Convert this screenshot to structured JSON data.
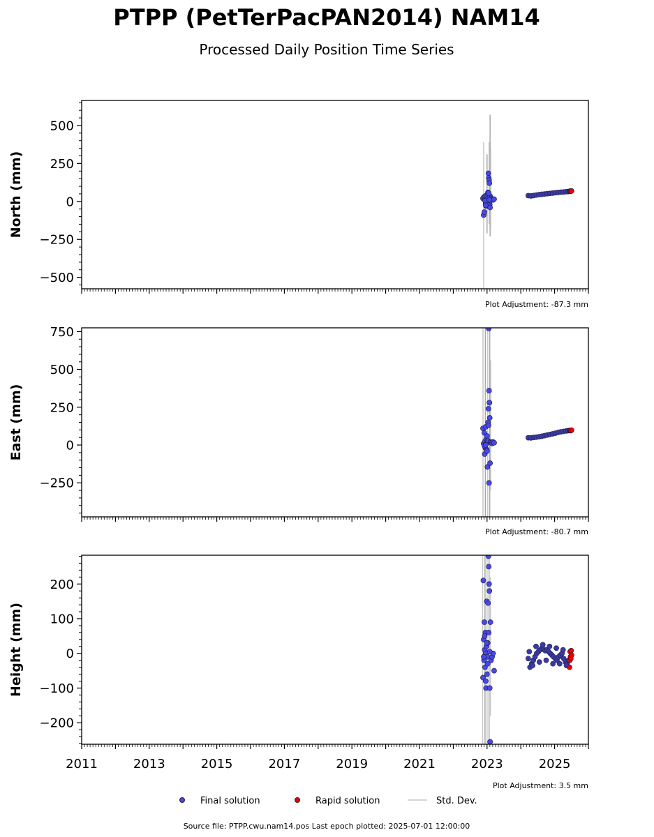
{
  "title": "PTPP (PetTerPacPAN2014) NAM14",
  "subtitle": "Processed Daily Position Time Series",
  "footer": "Source file: PTPP.cwu.nam14.pos  Last epoch plotted: 2025-07-01 12:00:00",
  "legend": {
    "final_label": "Final solution",
    "rapid_label": "Rapid solution",
    "std_label": "Std. Dev.",
    "placement": "bottom-center"
  },
  "colors": {
    "final": "#4848e8",
    "rapid": "#ee0000",
    "stddev": "#c8c8c8",
    "dark_cluster": "#22225a"
  },
  "chart_data": [
    {
      "type": "scatter",
      "ylabel": "North (mm)",
      "adjustment_text": "Plot Adjustment: -87.3 mm",
      "xlim": [
        2011.0,
        2026.0
      ],
      "ylim": [
        -575,
        665
      ],
      "yticks": [
        -500,
        -250,
        0,
        250,
        500
      ],
      "ytick_labels": [
        "−500",
        "−250",
        "0",
        "250",
        "500"
      ],
      "xtick_labels": [
        "",
        "",
        "",
        "",
        "",
        "",
        "",
        ""
      ],
      "series": [
        {
          "name": "Final solution",
          "x": [
            2022.88,
            2022.9,
            2022.91,
            2022.92,
            2022.93,
            2022.94,
            2022.95,
            2022.96,
            2022.97,
            2022.98,
            2022.99,
            2023.0,
            2023.01,
            2023.02,
            2023.03,
            2023.04,
            2023.05,
            2023.06,
            2023.07,
            2023.08,
            2023.09,
            2023.1,
            2023.12,
            2023.15,
            2023.18,
            2023.21,
            2022.94,
            2022.96,
            2023.05,
            2023.07,
            2023.09
          ],
          "y": [
            20,
            -90,
            30,
            -70,
            10,
            35,
            0,
            -10,
            -30,
            25,
            40,
            -5,
            15,
            50,
            60,
            185,
            155,
            140,
            120,
            -20,
            35,
            5,
            20,
            15,
            10,
            15,
            5,
            -25,
            55,
            10,
            -40
          ]
        },
        {
          "name": "Final solution",
          "x": [
            2024.22,
            2024.3,
            2024.38,
            2024.46,
            2024.54,
            2024.62,
            2024.7,
            2024.78,
            2024.86,
            2024.94,
            2025.02,
            2025.1,
            2025.18,
            2025.26,
            2025.34,
            2025.4
          ],
          "y": [
            38,
            36,
            39,
            42,
            45,
            47,
            49,
            51,
            53,
            55,
            57,
            59,
            61,
            62,
            64,
            65
          ]
        },
        {
          "name": "Rapid solution",
          "x": [
            2025.44,
            2025.46,
            2025.48,
            2025.5
          ],
          "y": [
            66,
            68,
            67,
            69
          ]
        }
      ],
      "stddev_segments": [
        {
          "x": 2022.9,
          "low": -575,
          "high": 390
        },
        {
          "x": 2023.0,
          "low": -210,
          "high": 310
        },
        {
          "x": 2023.06,
          "low": -150,
          "high": 390
        },
        {
          "x": 2023.09,
          "low": -230,
          "high": 570
        },
        {
          "x": 2023.11,
          "low": -180,
          "high": 350
        }
      ]
    },
    {
      "type": "scatter",
      "ylabel": "East (mm)",
      "adjustment_text": "Plot Adjustment: -80.7 mm",
      "xlim": [
        2011.0,
        2026.0
      ],
      "ylim": [
        -475,
        775
      ],
      "yticks": [
        -250,
        0,
        250,
        500,
        750
      ],
      "ytick_labels": [
        "−250",
        "0",
        "250",
        "500",
        "750"
      ],
      "xtick_labels": [
        "",
        "",
        "",
        "",
        "",
        "",
        "",
        ""
      ],
      "series": [
        {
          "name": "Final solution",
          "x": [
            2022.88,
            2022.9,
            2022.92,
            2022.93,
            2022.94,
            2022.95,
            2022.96,
            2022.97,
            2022.98,
            2022.99,
            2023.0,
            2023.01,
            2023.02,
            2023.03,
            2023.04,
            2023.05,
            2023.06,
            2023.07,
            2023.08,
            2023.09,
            2023.1,
            2023.12,
            2023.15,
            2023.18,
            2023.21,
            2022.92,
            2022.96,
            2023.0,
            2023.04,
            2023.06
          ],
          "y": [
            110,
            10,
            80,
            -60,
            25,
            -20,
            120,
            5,
            40,
            -30,
            60,
            -145,
            30,
            150,
            240,
            770,
            360,
            280,
            180,
            -120,
            20,
            15,
            10,
            20,
            15,
            -5,
            0,
            -40,
            130,
            -250
          ],
          "note": ""
        },
        {
          "name": "Final solution",
          "x": [
            2024.22,
            2024.3,
            2024.38,
            2024.46,
            2024.54,
            2024.62,
            2024.7,
            2024.78,
            2024.86,
            2024.94,
            2025.02,
            2025.1,
            2025.18,
            2025.26,
            2025.34,
            2025.4
          ],
          "y": [
            48,
            47,
            50,
            52,
            55,
            58,
            62,
            66,
            70,
            74,
            78,
            83,
            87,
            90,
            93,
            95
          ]
        },
        {
          "name": "Rapid solution",
          "x": [
            2025.44,
            2025.46,
            2025.48,
            2025.5
          ],
          "y": [
            96,
            97,
            95,
            98
          ]
        }
      ],
      "stddev_segments": [
        {
          "x": 2022.88,
          "low": -475,
          "high": 775
        },
        {
          "x": 2022.95,
          "low": -475,
          "high": 775
        },
        {
          "x": 2023.02,
          "low": -475,
          "high": 775
        },
        {
          "x": 2023.08,
          "low": -475,
          "high": 775
        },
        {
          "x": 2023.11,
          "low": -300,
          "high": 560
        }
      ]
    },
    {
      "type": "scatter",
      "ylabel": "Height (mm)",
      "adjustment_text": "Plot Adjustment: 3.5 mm",
      "xlim": [
        2011.0,
        2026.0
      ],
      "ylim": [
        -262,
        283
      ],
      "yticks": [
        -200,
        -100,
        0,
        100,
        200
      ],
      "ytick_labels": [
        "−200",
        "−100",
        "0",
        "100",
        "200"
      ],
      "xtick_labels": [
        "2011",
        "2013",
        "2015",
        "2017",
        "2019",
        "2021",
        "2023",
        "2025"
      ],
      "series": [
        {
          "name": "Final solution",
          "x": [
            2022.88,
            2022.89,
            2022.9,
            2022.91,
            2022.92,
            2022.93,
            2022.94,
            2022.95,
            2022.96,
            2022.97,
            2022.98,
            2022.99,
            2023.0,
            2023.01,
            2023.02,
            2023.03,
            2023.04,
            2023.05,
            2023.06,
            2023.07,
            2023.08,
            2023.09,
            2023.1,
            2023.12,
            2023.15,
            2023.18,
            2023.21,
            2022.9,
            2022.93,
            2022.96,
            2022.99,
            2023.02,
            2023.05,
            2023.08
          ],
          "y": [
            -70,
            210,
            40,
            -20,
            90,
            10,
            -40,
            60,
            0,
            -100,
            20,
            150,
            -60,
            -10,
            30,
            145,
            280,
            250,
            200,
            180,
            -100,
            -255,
            90,
            -20,
            -10,
            0,
            -50,
            -10,
            50,
            -80,
            30,
            -30,
            60,
            5
          ]
        },
        {
          "name": "Final solution",
          "x": [
            2024.22,
            2024.27,
            2024.32,
            2024.37,
            2024.42,
            2024.47,
            2024.52,
            2024.57,
            2024.62,
            2024.67,
            2024.72,
            2024.77,
            2024.82,
            2024.87,
            2024.92,
            2024.97,
            2025.02,
            2025.07,
            2025.12,
            2025.17,
            2025.22,
            2025.27,
            2025.32,
            2025.37,
            2025.42,
            2024.25,
            2024.35,
            2024.45,
            2024.55,
            2024.65,
            2024.75,
            2024.85,
            2024.95,
            2025.05,
            2025.15,
            2025.25,
            2025.35
          ],
          "y": [
            -15,
            -40,
            -30,
            -20,
            -10,
            0,
            5,
            10,
            15,
            12,
            8,
            10,
            5,
            0,
            -5,
            -10,
            -15,
            -20,
            -10,
            -5,
            0,
            -15,
            -25,
            -30,
            -20,
            5,
            -35,
            20,
            -25,
            25,
            -20,
            20,
            -30,
            15,
            -30,
            10,
            -35
          ]
        },
        {
          "name": "Rapid solution",
          "x": [
            2025.44,
            2025.45,
            2025.46,
            2025.47,
            2025.48,
            2025.49,
            2025.5
          ],
          "y": [
            -40,
            -20,
            5,
            -10,
            -15,
            8,
            -5
          ]
        }
      ],
      "stddev_segments": [
        {
          "x": 2022.87,
          "low": -262,
          "high": 283
        },
        {
          "x": 2022.94,
          "low": -262,
          "high": 283
        },
        {
          "x": 2023.0,
          "low": -262,
          "high": 283
        },
        {
          "x": 2023.06,
          "low": -262,
          "high": 283
        },
        {
          "x": 2023.1,
          "low": -180,
          "high": 220
        }
      ]
    }
  ]
}
